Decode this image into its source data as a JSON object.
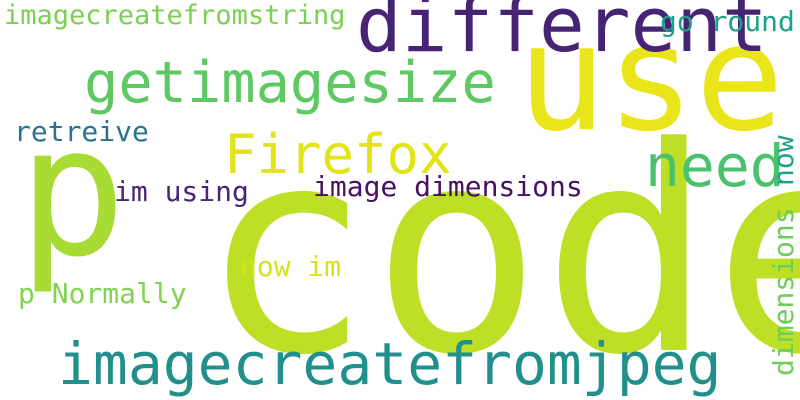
{
  "words": [
    {
      "text": "code",
      "color": "#bddf26"
    },
    {
      "text": "use",
      "color": "#eae51a"
    },
    {
      "text": "p",
      "color": "#a8db34"
    },
    {
      "text": "different",
      "color": "#472374"
    },
    {
      "text": "getimagesize",
      "color": "#5ec962"
    },
    {
      "text": "Firefox",
      "color": "#e2e418"
    },
    {
      "text": "need",
      "color": "#4ac16d"
    },
    {
      "text": "imagecreatefromjpeg",
      "color": "#21908d"
    },
    {
      "text": "imagecreatefromstring",
      "color": "#7ad151"
    },
    {
      "text": "go round",
      "color": "#1fa088"
    },
    {
      "text": "retreive",
      "color": "#2c728e"
    },
    {
      "text": "im using",
      "color": "#482576"
    },
    {
      "text": "image dimensions",
      "color": "#471164"
    },
    {
      "text": "now im",
      "color": "#d8e219"
    },
    {
      "text": "p Normally",
      "color": "#7fd34e"
    },
    {
      "text": "now",
      "color": "#1fa187"
    },
    {
      "text": "dimensions",
      "color": "#6ccd5a"
    }
  ]
}
